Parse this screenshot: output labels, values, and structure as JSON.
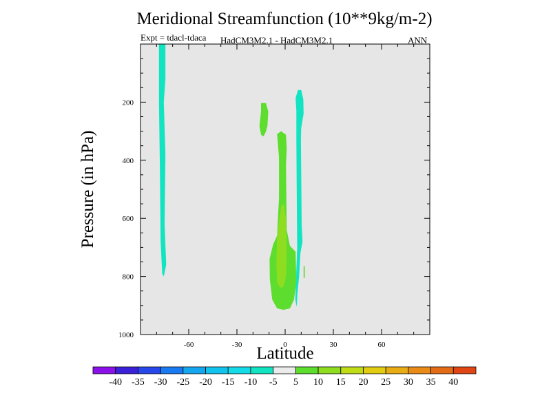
{
  "chart_data": {
    "type": "heatmap",
    "title": "Meridional Streamfunction (10**9kg/m-2)",
    "experiment": "Expt = tdacl-tdaca",
    "models": "HadCM3M2.1 - HadCM3M2.1",
    "season": "ANN",
    "xlabel": "Latitude",
    "ylabel": "Pressure (in hPa)",
    "xlim": [
      -90,
      90
    ],
    "ylim": [
      1000,
      0
    ],
    "xticks": [
      -60,
      -30,
      0,
      30,
      60
    ],
    "yticks": [
      200,
      400,
      600,
      800,
      1000
    ],
    "background_color": "#e6e6e6",
    "colorbar": {
      "levels": [
        "-40",
        "-35",
        "-30",
        "-25",
        "-20",
        "-15",
        "-10",
        "-5",
        "5",
        "10",
        "15",
        "20",
        "25",
        "30",
        "35",
        "40"
      ],
      "colors": [
        "#8c10ea",
        "#3a20d8",
        "#2747ea",
        "#1a7af2",
        "#14a6ef",
        "#12c3ee",
        "#13dce8",
        "#12e4c2",
        "#ebebeb",
        "#5ddd2d",
        "#8edd21",
        "#bfdc17",
        "#e0cc10",
        "#e8ac14",
        "#e88c17",
        "#e46c16",
        "#e04514"
      ]
    },
    "regions": [
      {
        "name": "sh-polar-negative-cell",
        "value": -7.5,
        "color": "#12e4c2",
        "polygon": [
          [
            -78.5,
            0
          ],
          [
            -74.5,
            0
          ],
          [
            -74.5,
            120
          ],
          [
            -75.5,
            200
          ],
          [
            -74.5,
            380
          ],
          [
            -75,
            620
          ],
          [
            -74,
            760
          ],
          [
            -75.5,
            800
          ],
          [
            -76.5,
            790
          ],
          [
            -77.5,
            680
          ],
          [
            -78,
            400
          ],
          [
            -78.5,
            200
          ],
          [
            -78.5,
            0
          ]
        ]
      },
      {
        "name": "upper-positive-cell",
        "value": 7.5,
        "color": "#5ddd2d",
        "polygon": [
          [
            -15,
            203
          ],
          [
            -12,
            203
          ],
          [
            -10.5,
            232
          ],
          [
            -11,
            282
          ],
          [
            -12,
            302
          ],
          [
            -13.5,
            318
          ],
          [
            -15,
            312
          ],
          [
            -16,
            282
          ],
          [
            -15,
            232
          ],
          [
            -15,
            203
          ]
        ]
      },
      {
        "name": "eq-negative-cell",
        "value": -7.5,
        "color": "#12e4c2",
        "polygon": [
          [
            7,
            230
          ],
          [
            6.5,
            185
          ],
          [
            8,
            158
          ],
          [
            10,
            158
          ],
          [
            11.3,
            190
          ],
          [
            11.5,
            240
          ],
          [
            10,
            290
          ],
          [
            9.8,
            330
          ],
          [
            10.3,
            620
          ],
          [
            10.8,
            680
          ],
          [
            9.5,
            720
          ],
          [
            8.7,
            800
          ],
          [
            7.6,
            860
          ],
          [
            7.3,
            905
          ],
          [
            6.3,
            880
          ],
          [
            6.8,
            800
          ],
          [
            7.5,
            700
          ],
          [
            7.2,
            500
          ],
          [
            7,
            330
          ],
          [
            7,
            230
          ]
        ]
      },
      {
        "name": "eq-positive-cell",
        "value": 7.5,
        "color": "#5ddd2d",
        "polygon": [
          [
            -5,
            310
          ],
          [
            -2.5,
            300
          ],
          [
            0.5,
            312
          ],
          [
            1,
            360
          ],
          [
            0.5,
            415
          ],
          [
            0.8,
            560
          ],
          [
            1,
            640
          ],
          [
            3,
            695
          ],
          [
            6.5,
            715
          ],
          [
            7,
            820
          ],
          [
            5.5,
            880
          ],
          [
            3,
            910
          ],
          [
            -1,
            915
          ],
          [
            -5,
            910
          ],
          [
            -8,
            880
          ],
          [
            -9.5,
            810
          ],
          [
            -9.7,
            740
          ],
          [
            -7.5,
            690
          ],
          [
            -5,
            660
          ],
          [
            -4.5,
            600
          ],
          [
            -3.8,
            530
          ],
          [
            -3.8,
            390
          ],
          [
            -5,
            310
          ]
        ]
      },
      {
        "name": "eq-positive-core",
        "value": 12.5,
        "color": "#8edd21",
        "polygon": [
          [
            -2.5,
            560
          ],
          [
            -0.8,
            550
          ],
          [
            0.5,
            600
          ],
          [
            0.8,
            660
          ],
          [
            1,
            730
          ],
          [
            0.5,
            800
          ],
          [
            -1,
            835
          ],
          [
            -3,
            840
          ],
          [
            -5,
            820
          ],
          [
            -5.5,
            760
          ],
          [
            -5,
            660
          ],
          [
            -3.5,
            600
          ],
          [
            -2.5,
            560
          ]
        ]
      },
      {
        "name": "small-positive-sliver",
        "value": 7.5,
        "color": "#5ddd2d",
        "polygon": [
          [
            11.5,
            765
          ],
          [
            12.2,
            765
          ],
          [
            12.2,
            805
          ],
          [
            11.5,
            805
          ],
          [
            11.5,
            765
          ]
        ]
      }
    ]
  }
}
